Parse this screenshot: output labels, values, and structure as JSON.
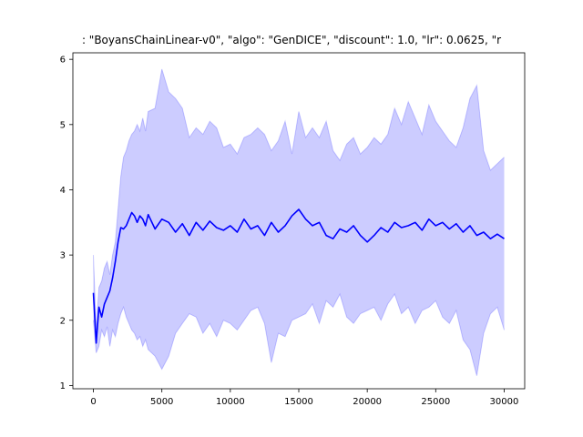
{
  "chart_data": {
    "type": "line",
    "title": ": \"BoyansChainLinear-v0\", \"algo\": \"GenDICE\", \"discount\": 1.0, \"lr\": 0.0625, \"r",
    "xlabel": "",
    "ylabel": "",
    "xlim": [
      -1500,
      31500
    ],
    "ylim": [
      0.95,
      6.1
    ],
    "xticks": [
      0,
      5000,
      10000,
      15000,
      20000,
      25000,
      30000
    ],
    "yticks": [
      1,
      2,
      3,
      4,
      5,
      6
    ],
    "grid": false,
    "colors": {
      "line": "#0000ff",
      "band": "#0000ff",
      "band_opacity": 0.2,
      "edge_opacity": 0.2
    },
    "series": [
      {
        "x": [
          0,
          200,
          400,
          600,
          800,
          1000,
          1200,
          1400,
          1600,
          1800,
          2000,
          2200,
          2400,
          2600,
          2800,
          3000,
          3200,
          3400,
          3600,
          3800,
          4000,
          4500,
          5000,
          5500,
          6000,
          6500,
          7000,
          7500,
          8000,
          8500,
          9000,
          9500,
          10000,
          10500,
          11000,
          11500,
          12000,
          12500,
          13000,
          13500,
          14000,
          14500,
          15000,
          15500,
          16000,
          16500,
          17000,
          17500,
          18000,
          18500,
          19000,
          19500,
          20000,
          20500,
          21000,
          21500,
          22000,
          22500,
          23000,
          23500,
          24000,
          24500,
          25000,
          25500,
          26000,
          26500,
          27000,
          27500,
          28000,
          28500,
          29000,
          29500,
          30000
        ],
        "mean": [
          2.42,
          1.65,
          2.2,
          2.05,
          2.25,
          2.35,
          2.45,
          2.65,
          2.9,
          3.2,
          3.42,
          3.4,
          3.45,
          3.55,
          3.65,
          3.6,
          3.5,
          3.6,
          3.55,
          3.45,
          3.62,
          3.4,
          3.55,
          3.5,
          3.35,
          3.48,
          3.3,
          3.5,
          3.38,
          3.52,
          3.42,
          3.38,
          3.45,
          3.35,
          3.55,
          3.4,
          3.45,
          3.3,
          3.5,
          3.35,
          3.45,
          3.6,
          3.7,
          3.55,
          3.45,
          3.5,
          3.3,
          3.25,
          3.4,
          3.35,
          3.45,
          3.3,
          3.2,
          3.3,
          3.42,
          3.35,
          3.5,
          3.42,
          3.45,
          3.5,
          3.38,
          3.55,
          3.45,
          3.5,
          3.4,
          3.48,
          3.35,
          3.45,
          3.3,
          3.35,
          3.25,
          3.32,
          3.25
        ],
        "upper": [
          3.0,
          1.85,
          2.5,
          2.6,
          2.8,
          2.9,
          2.7,
          3.0,
          3.2,
          3.7,
          4.2,
          4.5,
          4.6,
          4.75,
          4.85,
          4.9,
          5.0,
          4.9,
          5.1,
          4.9,
          5.2,
          5.25,
          5.85,
          5.5,
          5.4,
          5.25,
          4.8,
          4.95,
          4.85,
          5.05,
          4.95,
          4.65,
          4.7,
          4.55,
          4.8,
          4.85,
          4.95,
          4.85,
          4.6,
          4.75,
          5.05,
          4.55,
          5.2,
          4.8,
          4.95,
          4.8,
          5.05,
          4.6,
          4.45,
          4.7,
          4.8,
          4.55,
          4.65,
          4.8,
          4.7,
          4.85,
          5.25,
          5.0,
          5.35,
          5.1,
          4.85,
          5.3,
          5.05,
          4.9,
          4.75,
          4.65,
          4.95,
          5.4,
          5.6,
          4.6,
          4.3,
          4.4,
          4.5
        ],
        "lower": [
          2.0,
          1.5,
          1.6,
          1.85,
          1.75,
          1.9,
          1.6,
          1.85,
          1.75,
          1.95,
          2.1,
          2.2,
          2.05,
          1.95,
          1.85,
          1.8,
          1.7,
          1.75,
          1.6,
          1.7,
          1.55,
          1.45,
          1.25,
          1.45,
          1.8,
          1.95,
          2.1,
          2.05,
          1.8,
          1.95,
          1.75,
          2.0,
          1.95,
          1.85,
          2.0,
          2.15,
          2.2,
          1.95,
          1.35,
          1.8,
          1.75,
          2.0,
          2.05,
          2.1,
          2.25,
          1.95,
          2.3,
          2.2,
          2.4,
          2.05,
          1.95,
          2.1,
          2.15,
          2.2,
          2.0,
          2.25,
          2.4,
          2.1,
          2.2,
          1.95,
          2.15,
          2.2,
          2.3,
          2.05,
          1.95,
          2.15,
          1.7,
          1.55,
          1.15,
          1.8,
          2.1,
          2.2,
          1.85
        ]
      }
    ]
  }
}
